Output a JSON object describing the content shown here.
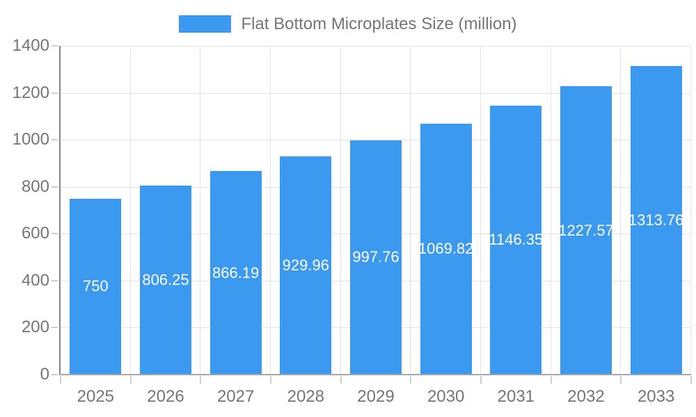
{
  "chart_data": {
    "type": "bar",
    "title": "Flat Bottom Microplates Size (million)",
    "legend_position": "top",
    "categories": [
      "2025",
      "2026",
      "2027",
      "2028",
      "2029",
      "2030",
      "2031",
      "2032",
      "2033"
    ],
    "series": [
      {
        "name": "Flat Bottom Microplates Size (million)",
        "values": [
          750,
          806.25,
          866.19,
          929.96,
          997.76,
          1069.82,
          1146.35,
          1227.57,
          1313.76
        ],
        "value_labels": [
          "750",
          "806.25",
          "866.19",
          "929.96",
          "997.76",
          "1069.82",
          "1146.35",
          "1227.57",
          "1313.76"
        ]
      }
    ],
    "xlabel": "",
    "ylabel": "",
    "ylim": [
      0,
      1400
    ],
    "yticks": [
      0,
      200,
      400,
      600,
      800,
      1000,
      1200,
      1400
    ],
    "grid": true,
    "colors": {
      "bar": "#3B99F0",
      "bar_label": "#FFFFFF",
      "axis_text": "#757575",
      "gridline": "#E3E3E3",
      "axis_line_y": "#848484",
      "axis_line_x": "#A8A8A8",
      "tick_mark": "#CDCDCD"
    }
  }
}
